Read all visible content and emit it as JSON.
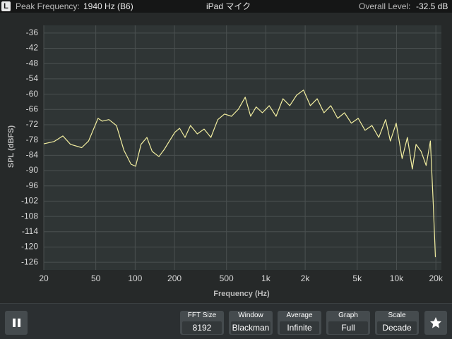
{
  "header": {
    "channel": "L",
    "peak_label": "Peak Frequency:",
    "peak_value": "1940 Hz (B6)",
    "device": "iPad マイク",
    "level_label": "Overall Level:",
    "level_value": "-32.5 dB"
  },
  "chart_data": {
    "type": "line",
    "ylabel": "SPL (dBFS)",
    "xlabel": "Frequency (Hz)",
    "log_x": true,
    "grid": true,
    "color": "#f2eea0",
    "xlim": [
      20,
      22050
    ],
    "ylim": [
      -129,
      -33
    ],
    "xticks": [
      20,
      50,
      100,
      200,
      500,
      {
        "value": 1000,
        "label": "1k"
      },
      {
        "value": 2000,
        "label": "2k"
      },
      {
        "value": 5000,
        "label": "5k"
      },
      {
        "value": 10000,
        "label": "10k"
      },
      {
        "value": 20000,
        "label": "20k"
      }
    ],
    "yticks": [
      -36,
      -42,
      -48,
      -54,
      -60,
      -66,
      -72,
      -78,
      -84,
      -90,
      -96,
      -102,
      -108,
      -114,
      -120,
      -126
    ],
    "x": [
      20,
      24,
      28,
      32,
      39,
      44,
      52,
      56,
      63,
      72,
      82,
      93,
      101,
      111,
      123,
      135,
      152,
      167,
      183,
      201,
      219,
      241,
      265,
      299,
      337,
      380,
      429,
      483,
      546,
      616,
      695,
      765,
      843,
      941,
      1062,
      1198,
      1352,
      1525,
      1720,
      1940,
      2189,
      2470,
      2786,
      3143,
      3546,
      4000,
      4513,
      5092,
      5744,
      6480,
      7310,
      8247,
      8968,
      9950,
      11040,
      12100,
      13200,
      14100,
      15430,
      16850,
      18150,
      19100,
      19840
    ],
    "values": [
      -79.5,
      -78.6,
      -76.4,
      -79.7,
      -81,
      -78.4,
      -69.5,
      -70.6,
      -70,
      -72.3,
      -82,
      -87.5,
      -88.3,
      -79.7,
      -77,
      -82.5,
      -84.5,
      -81.7,
      -78.4,
      -75,
      -73.4,
      -77,
      -72.3,
      -75.6,
      -73.7,
      -77,
      -70,
      -67.8,
      -68.7,
      -65.9,
      -61.2,
      -68.7,
      -65,
      -67.3,
      -64.5,
      -68.7,
      -61.8,
      -64.5,
      -60.4,
      -58.4,
      -64.5,
      -61.8,
      -67.3,
      -64.5,
      -69.5,
      -67.3,
      -71.4,
      -69.5,
      -74.2,
      -72.3,
      -77,
      -70,
      -78.4,
      -71.4,
      -85.3,
      -77,
      -89.4,
      -79.7,
      -82.5,
      -88,
      -78.4,
      -103.3,
      -124
    ]
  },
  "controls": [
    {
      "label": "FFT Size",
      "value": "8192"
    },
    {
      "label": "Window",
      "value": "Blackman"
    },
    {
      "label": "Average",
      "value": "Infinite"
    },
    {
      "label": "Graph",
      "value": "Full"
    },
    {
      "label": "Scale",
      "value": "Decade"
    }
  ]
}
